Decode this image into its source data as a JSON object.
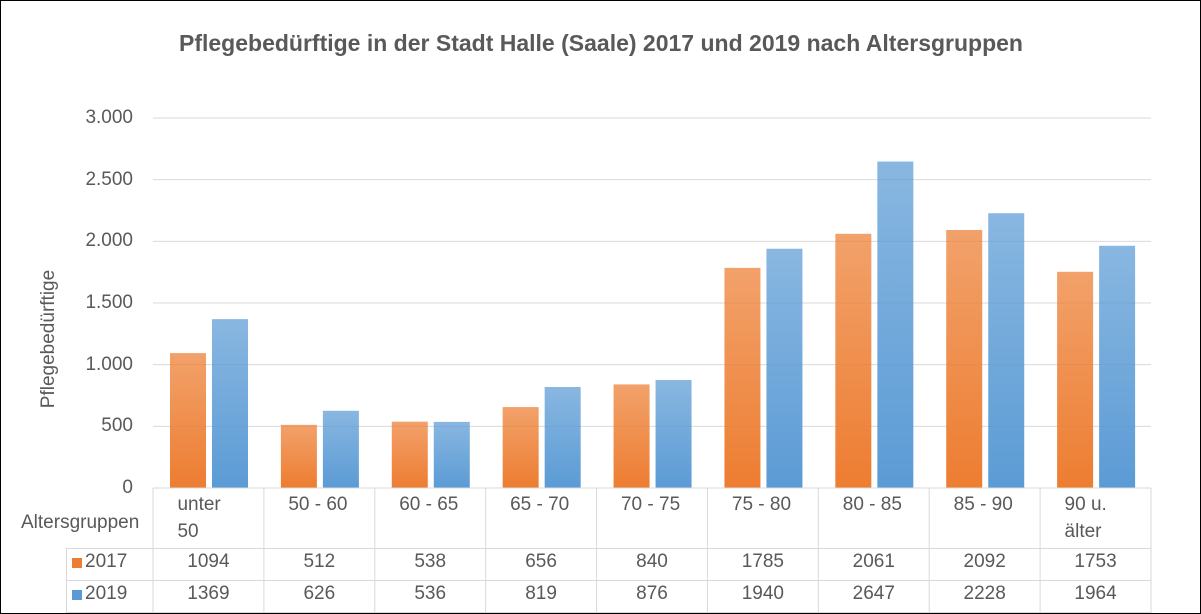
{
  "chart_data": {
    "type": "bar",
    "title": "Pflegebedürftige in der Stadt Halle (Saale) 2017 und 2019 nach Altersgruppen",
    "x_label": "Altersgruppen",
    "y_label": "Pflegebedürftige",
    "categories": [
      "unter 50",
      "50 - 60",
      "60 - 65",
      "65 - 70",
      "70 - 75",
      "75 - 80",
      "80 - 85",
      "85 - 90",
      "90 u. älter"
    ],
    "series": [
      {
        "name": "2017",
        "color": "#ed7d31",
        "values": [
          1094,
          512,
          538,
          656,
          840,
          1785,
          2061,
          2092,
          1753
        ]
      },
      {
        "name": "2019",
        "color": "#5b9bd5",
        "values": [
          1369,
          626,
          536,
          819,
          876,
          1940,
          2647,
          2228,
          1964
        ]
      }
    ],
    "ylim": [
      0,
      3000
    ],
    "yticks": [
      0,
      500,
      {
        "value": 1000,
        "label": "1.000"
      },
      {
        "value": 1500,
        "label": "1.500"
      },
      {
        "value": 2000,
        "label": "2.000"
      },
      {
        "value": 2500,
        "label": "2.500"
      },
      {
        "value": 3000,
        "label": "3.000"
      }
    ],
    "grid": true,
    "data_table": true
  }
}
